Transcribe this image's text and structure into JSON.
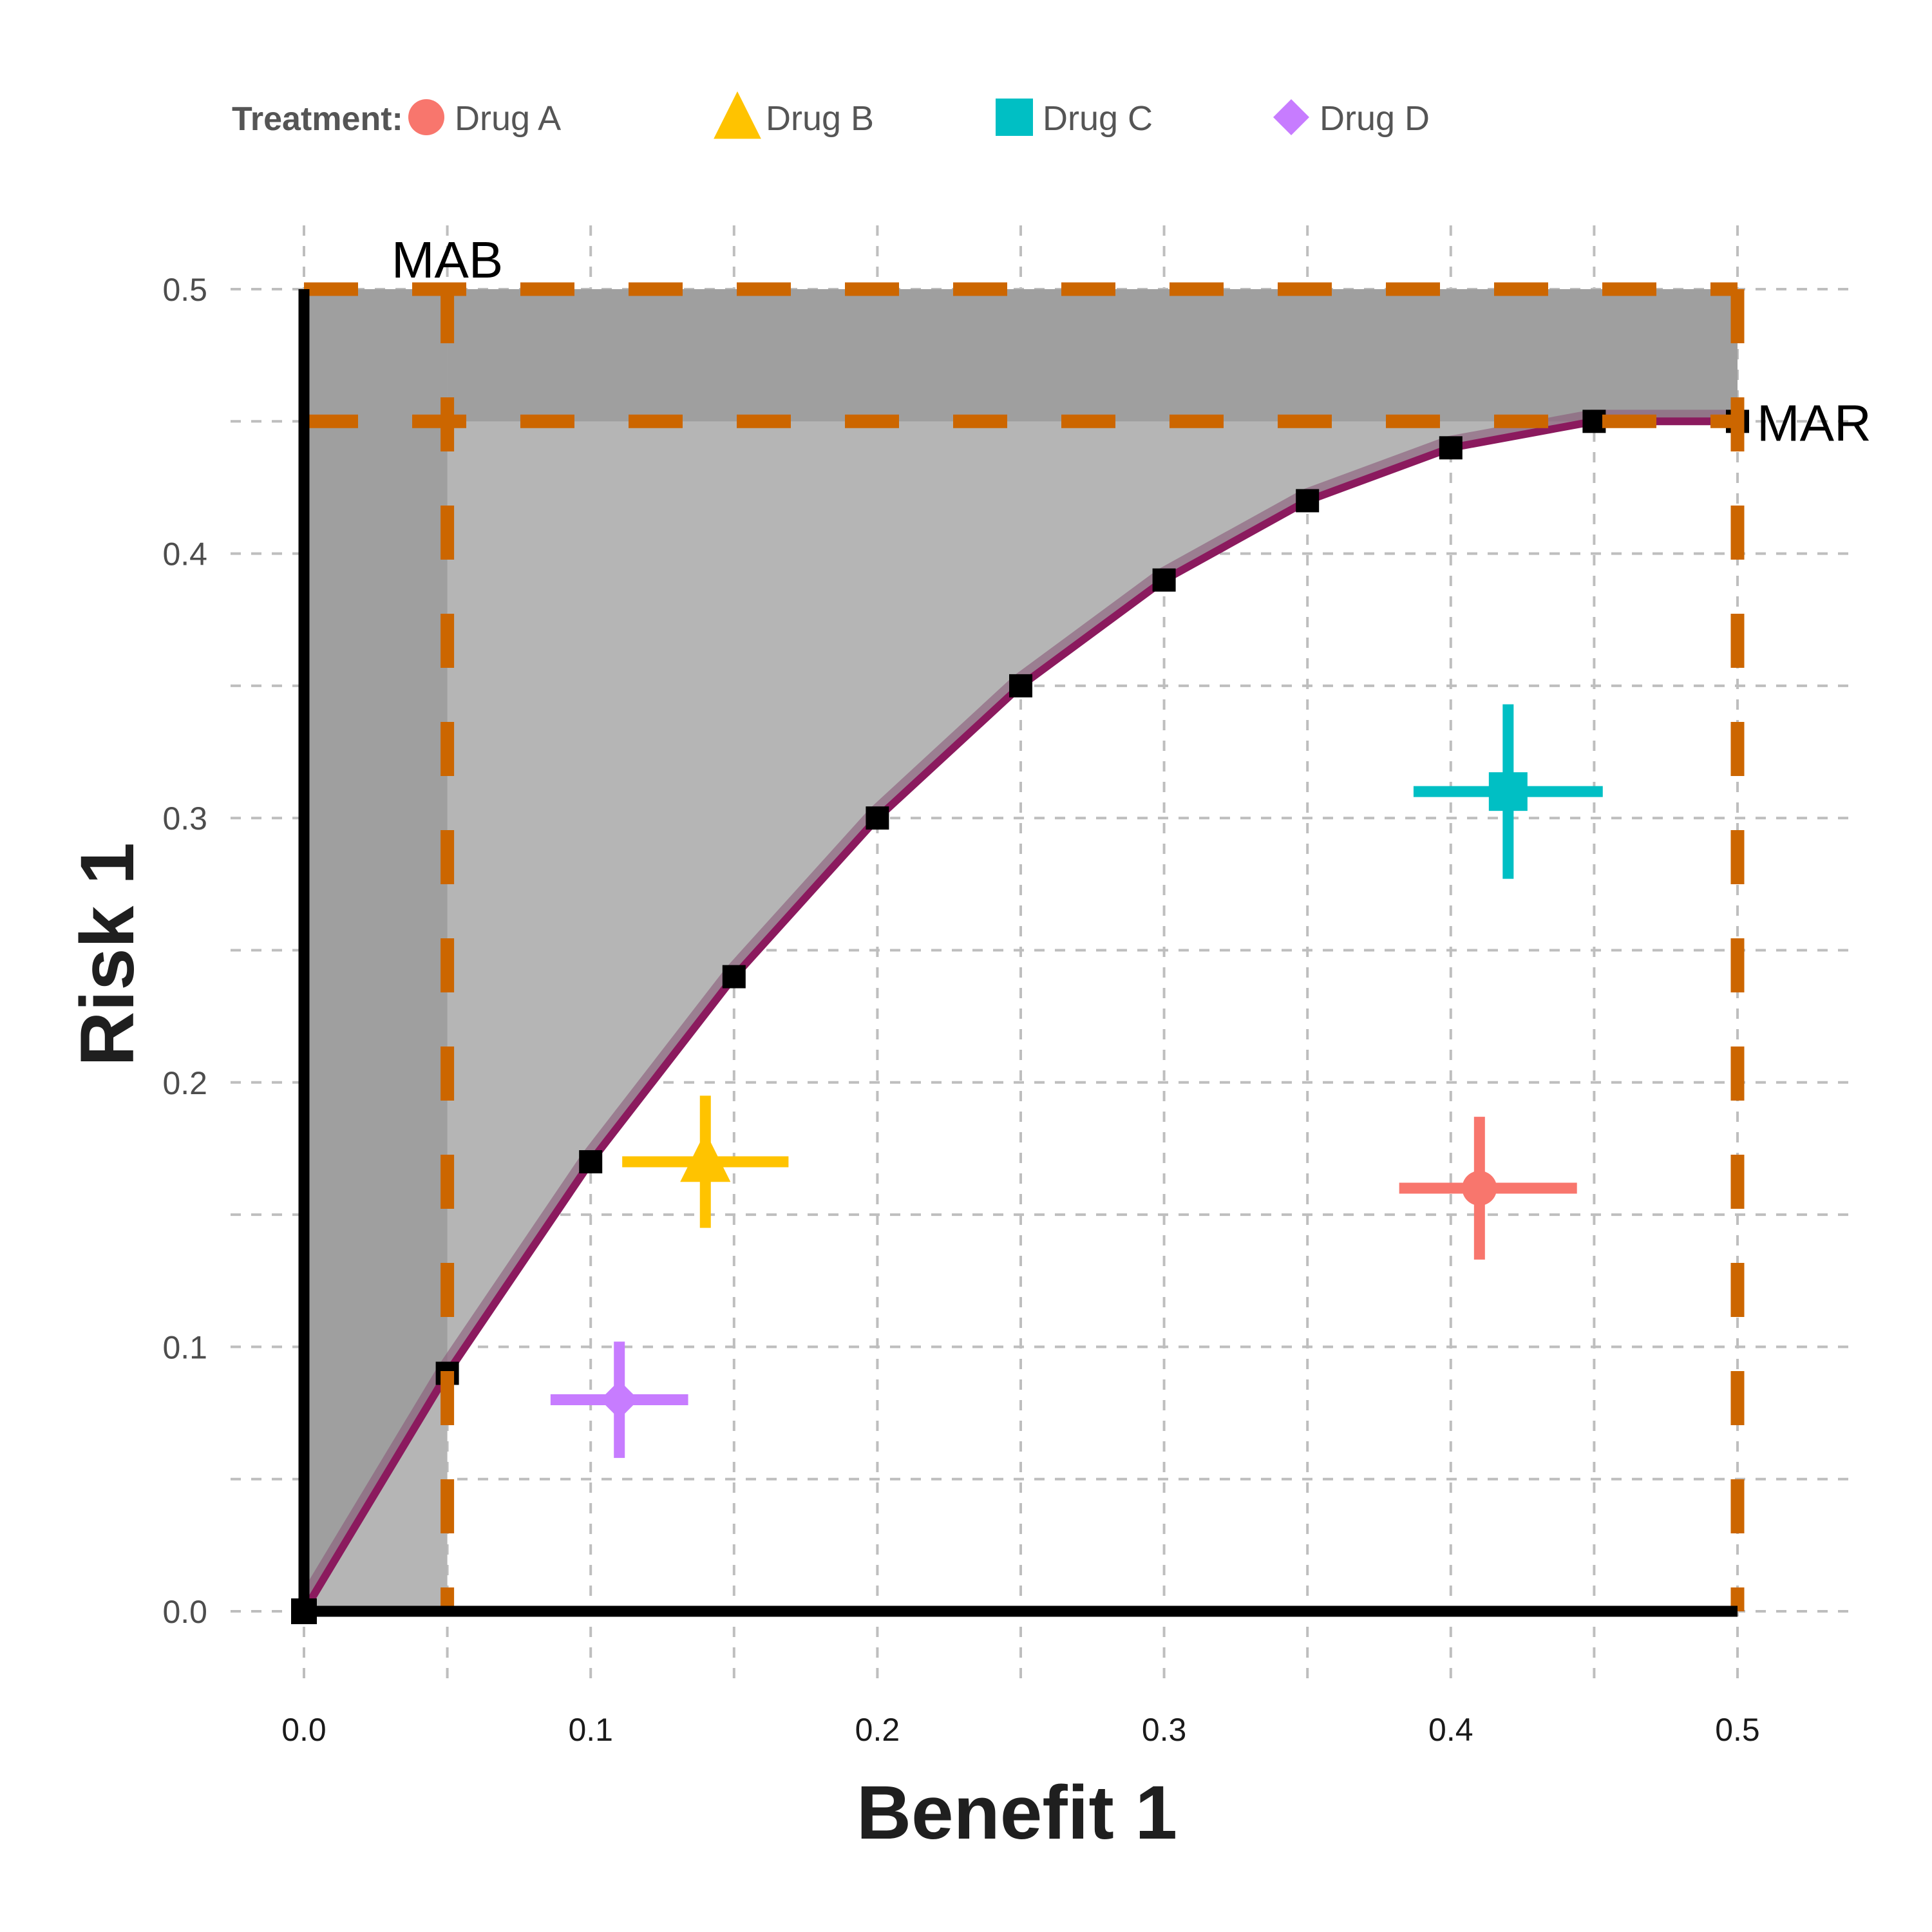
{
  "chart_data": {
    "type": "scatter",
    "title": "",
    "xlabel": "Benefit 1",
    "ylabel": "Risk 1",
    "xlim": [
      0,
      0.5
    ],
    "ylim": [
      0,
      0.5
    ],
    "x_ticks": [
      0.0,
      0.1,
      0.2,
      0.3,
      0.4,
      0.5
    ],
    "x_tick_labels": [
      "0.0",
      "0.1",
      "0.2",
      "0.3",
      "0.4",
      "0.5"
    ],
    "y_ticks": [
      0.0,
      0.1,
      0.2,
      0.3,
      0.4,
      0.5
    ],
    "y_tick_labels": [
      "0.0",
      "0.1",
      "0.2",
      "0.3",
      "0.4",
      "0.5"
    ],
    "minor_grid_step": 0.05,
    "grid": true,
    "legend": {
      "title": "Treatment:",
      "placement": "top",
      "entries": [
        {
          "label": "Drug A",
          "shape": "circle",
          "color": "#F8766D"
        },
        {
          "label": "Drug B",
          "shape": "triangle",
          "color": "#FFC300"
        },
        {
          "label": "Drug C",
          "shape": "square",
          "color": "#00BFC4"
        },
        {
          "label": "Drug D",
          "shape": "diamond",
          "color": "#C77CFF"
        }
      ]
    },
    "series": [
      {
        "name": "Drug A",
        "shape": "circle",
        "color": "#F8766D",
        "x": 0.41,
        "y": 0.16,
        "x_low": 0.382,
        "x_high": 0.444,
        "y_low": 0.133,
        "y_high": 0.187
      },
      {
        "name": "Drug B",
        "shape": "triangle",
        "color": "#FFC300",
        "x": 0.14,
        "y": 0.17,
        "x_low": 0.111,
        "x_high": 0.169,
        "y_low": 0.145,
        "y_high": 0.195
      },
      {
        "name": "Drug C",
        "shape": "square",
        "color": "#00BFC4",
        "x": 0.42,
        "y": 0.31,
        "x_low": 0.387,
        "x_high": 0.453,
        "y_low": 0.277,
        "y_high": 0.343
      },
      {
        "name": "Drug D",
        "shape": "diamond",
        "color": "#C77CFF",
        "x": 0.11,
        "y": 0.08,
        "x_low": 0.086,
        "x_high": 0.134,
        "y_low": 0.058,
        "y_high": 0.102
      }
    ],
    "frontier": {
      "name": "acceptability frontier",
      "color": "#8B1A5E",
      "points": [
        {
          "x": 0.0,
          "y": 0.0
        },
        {
          "x": 0.05,
          "y": 0.09
        },
        {
          "x": 0.1,
          "y": 0.17
        },
        {
          "x": 0.15,
          "y": 0.24
        },
        {
          "x": 0.2,
          "y": 0.3
        },
        {
          "x": 0.25,
          "y": 0.35
        },
        {
          "x": 0.3,
          "y": 0.39
        },
        {
          "x": 0.35,
          "y": 0.42
        },
        {
          "x": 0.4,
          "y": 0.44
        },
        {
          "x": 0.45,
          "y": 0.45
        },
        {
          "x": 0.5,
          "y": 0.45
        }
      ]
    },
    "thresholds": {
      "color": "#CC6600",
      "mab": {
        "label": "MAB",
        "x": 0.05
      },
      "mar": {
        "label": "MAR",
        "y": 0.45
      },
      "max_benefit": 0.5,
      "max_risk": 0.5
    },
    "fills": {
      "unacceptable_region": "#B5B5B5",
      "threshold_bands": "#9F9F9F"
    }
  }
}
